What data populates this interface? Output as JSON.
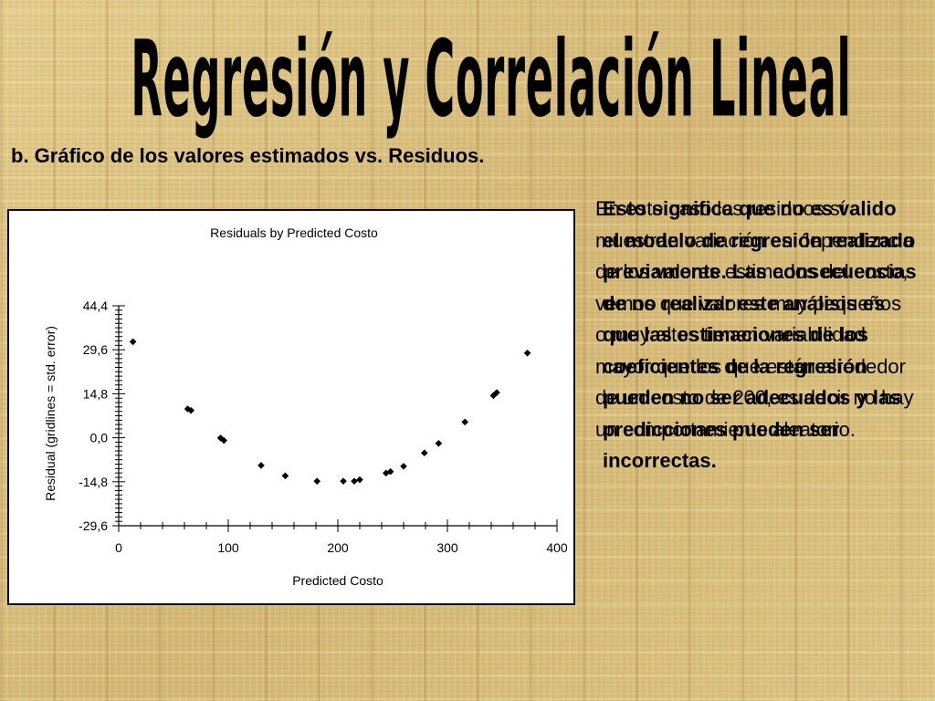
{
  "page": {
    "title": "Regresión y Correlación Lineal",
    "subtitle": "b. Gráfico de los valores estimados vs. Residuos.",
    "text_regular": "En este caso los residuos sí muestran variación en dependencia de los valores estimados del costo, vemos que valores muy pequeños o muy altos tienen variabilidad mayor que los que están alrededor de un costo de 200, es decir no hay un comportamiento aleatorio.",
    "text_bold": "Esto significa que no es valido el modelo de regresión realizado previamente. Las consecuencias de no realizar este análisis es que las estimaciones de los coeficientes de la regresión pueden no ser adecuados y las predicciones pueden ser incorrectas."
  },
  "chart_data": {
    "type": "scatter",
    "title": "Residuals by Predicted Costo",
    "xlabel": "Predicted Costo",
    "ylabel": "Residual (gridlines = std. error)",
    "xlim": [
      0,
      400
    ],
    "ylim": [
      -29.6,
      44.4
    ],
    "xticks": [
      0,
      100,
      200,
      300,
      400
    ],
    "xtick_labels": [
      "0",
      "100",
      "200",
      "300",
      "400"
    ],
    "yticks": [
      -29.6,
      -14.8,
      0.0,
      14.8,
      29.6,
      44.4
    ],
    "ytick_labels": [
      "-29,6",
      "-14,8",
      "0,0",
      "14,8",
      "29,6",
      "44,4"
    ],
    "grid": false,
    "series": [
      {
        "x": [
          13,
          63,
          66,
          93,
          96,
          130,
          152,
          181,
          205,
          215,
          220,
          244,
          248,
          260,
          279,
          292,
          316,
          342,
          345,
          373
        ],
        "y": [
          32.3,
          9.7,
          9.2,
          -0.1,
          -0.9,
          -9.3,
          -12.8,
          -14.6,
          -14.6,
          -14.6,
          -14.1,
          -11.9,
          -11.4,
          -9.6,
          -5.1,
          -1.9,
          5.3,
          14.2,
          15.2,
          28.5
        ]
      }
    ]
  }
}
